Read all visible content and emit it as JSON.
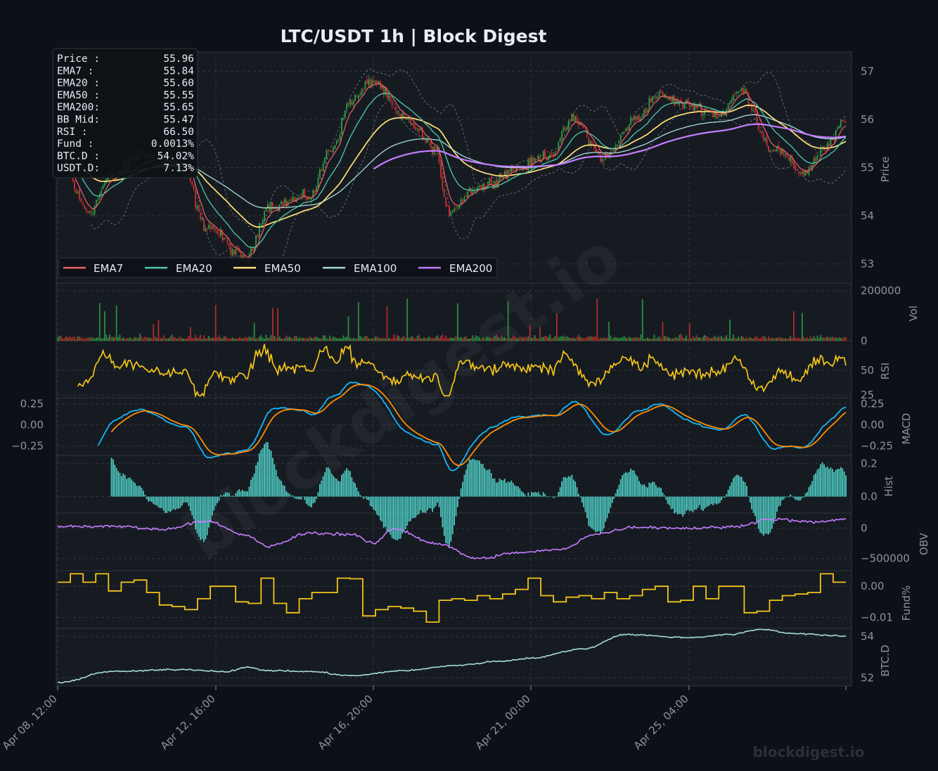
{
  "title": "LTC/USDT  1h  |  Block Digest",
  "watermark": "blockdigest.io",
  "footer_brand": "blockdigest.io",
  "colors": {
    "background": "#0d1117",
    "panel": "#161b22",
    "grid": "#30363d",
    "text": "#8b949e",
    "ema7": "#f0606a",
    "ema20": "#4ec9b0",
    "ema50": "#ffe27a",
    "ema100": "#a8dcd9",
    "ema200": "#c77dff",
    "bull": "#2ea043",
    "bear": "#c9302c",
    "rsi": "#f5c518",
    "macd": "#17b6f5",
    "signal": "#ff8c00",
    "hist": "#4ec9c0",
    "obv": "#c77dff",
    "fund": "#f5c518",
    "btcd": "#a8dcd9"
  },
  "info_box": [
    {
      "label": "Price :",
      "value": "55.96"
    },
    {
      "label": "EMA7  :",
      "value": "55.84"
    },
    {
      "label": "EMA20 :",
      "value": "55.60"
    },
    {
      "label": "EMA50 :",
      "value": "55.55"
    },
    {
      "label": "EMA200:",
      "value": "55.65"
    },
    {
      "label": "BB Mid:",
      "value": "55.47"
    },
    {
      "label": "RSI   :",
      "value": "66.50"
    },
    {
      "label": "Fund  :",
      "value": "0.0013%"
    },
    {
      "label": "BTC.D :",
      "value": "54.02%"
    },
    {
      "label": "USDT.D:",
      "value": "7.13%"
    }
  ],
  "legend": [
    "EMA7",
    "EMA20",
    "EMA50",
    "EMA100",
    "EMA200"
  ],
  "x_ticks": [
    "Apr 08, 12:00",
    "Apr 12, 16:00",
    "Apr 16, 20:00",
    "Apr 21, 00:00",
    "Apr 25, 04:00"
  ],
  "panels": {
    "price": {
      "ylabel": "Price",
      "ticks": [
        "57",
        "56",
        "55",
        "54",
        "53"
      ]
    },
    "vol": {
      "ylabel": "Vol",
      "ticks": [
        "200000",
        "0"
      ]
    },
    "rsi": {
      "ylabel": "RSI",
      "ticks": [
        "50",
        "25"
      ]
    },
    "macd": {
      "ylabel": "MACD",
      "ticks_left": [
        "0.25",
        "0.00",
        "−0.25"
      ],
      "ticks_right": [
        "0.25",
        "0.00",
        "−0.25"
      ]
    },
    "hist": {
      "ylabel": "Hist",
      "ticks": [
        "0.2",
        "0.0"
      ]
    },
    "obv": {
      "ylabel": "OBV",
      "ticks": [
        "0",
        "−500000"
      ]
    },
    "fund": {
      "ylabel": "Fund%",
      "ticks": [
        "0.00",
        "−0.01"
      ]
    },
    "btcd": {
      "ylabel": "BTC.D",
      "ticks": [
        "54",
        "52"
      ]
    }
  },
  "chart_data": {
    "type": "line",
    "title": "LTC/USDT  1h  |  Block Digest",
    "x_range": [
      "Apr 08, 12:00",
      "Apr 28, 08:00"
    ],
    "x_ticks": [
      "Apr 08, 12:00",
      "Apr 12, 16:00",
      "Apr 16, 20:00",
      "Apr 21, 00:00",
      "Apr 25, 04:00"
    ],
    "ylim_price": [
      52.6,
      57.4
    ],
    "price_anchors": [
      [
        0,
        55.2
      ],
      [
        3,
        54.1
      ],
      [
        5,
        54.8
      ],
      [
        8,
        55.3
      ],
      [
        12,
        55.0
      ],
      [
        14,
        53.8
      ],
      [
        18,
        53.1
      ],
      [
        20,
        54.2
      ],
      [
        24,
        54.4
      ],
      [
        26,
        55.4
      ],
      [
        28,
        56.4
      ],
      [
        30,
        56.8
      ],
      [
        33,
        56.0
      ],
      [
        36,
        55.4
      ],
      [
        37,
        54.1
      ],
      [
        40,
        54.6
      ],
      [
        44,
        55.0
      ],
      [
        47,
        55.3
      ],
      [
        49,
        56.0
      ],
      [
        52,
        55.2
      ],
      [
        55,
        56.0
      ],
      [
        57,
        56.5
      ],
      [
        60,
        56.3
      ],
      [
        63,
        56.1
      ],
      [
        65,
        56.6
      ],
      [
        68,
        55.4
      ],
      [
        71,
        54.9
      ],
      [
        73,
        55.4
      ],
      [
        75,
        55.96
      ]
    ],
    "ema200_range": [
      "Apr 16, 20:00",
      "Apr 28, 08:00"
    ],
    "volume_ylim": [
      0,
      230000
    ],
    "rsi_ylim": [
      22,
      80
    ],
    "macd_ylim": [
      -0.36,
      0.32
    ],
    "hist_ylim": [
      -0.1,
      0.25
    ],
    "obv_ylim": [
      -700000,
      250000
    ],
    "fund_ylim": [
      -0.0135,
      0.005
    ],
    "fund_steps": [
      0.0013,
      0.004,
      0.0013,
      0.004,
      -0.0015,
      0.0013,
      0.002,
      -0.002,
      -0.006,
      -0.0065,
      -0.0075,
      -0.004,
      0.0,
      0.0,
      -0.005,
      -0.0055,
      0.0026,
      -0.0055,
      -0.0085,
      -0.004,
      -0.002,
      -0.002,
      0.0026,
      0.0024,
      -0.0095,
      -0.0075,
      -0.0065,
      -0.007,
      -0.008,
      -0.0115,
      -0.0045,
      -0.004,
      -0.0045,
      -0.003,
      -0.004,
      -0.0025,
      -0.001,
      0.0026,
      -0.003,
      -0.005,
      -0.0035,
      -0.003,
      -0.004,
      -0.002,
      -0.004,
      -0.003,
      -0.001,
      0.0,
      -0.005,
      -0.0045,
      0.0,
      -0.004,
      0.0,
      0.0,
      -0.0085,
      -0.008,
      -0.0045,
      -0.003,
      -0.0025,
      -0.002,
      0.004,
      0.0013
    ],
    "btcd_ylim": [
      51.6,
      54.4
    ],
    "btcd_anchors": [
      [
        0,
        51.75
      ],
      [
        5,
        52.3
      ],
      [
        12,
        52.4
      ],
      [
        16,
        52.3
      ],
      [
        18,
        52.5
      ],
      [
        20,
        52.35
      ],
      [
        24,
        52.3
      ],
      [
        28,
        52.1
      ],
      [
        33,
        52.35
      ],
      [
        38,
        52.6
      ],
      [
        42,
        52.8
      ],
      [
        45,
        52.95
      ],
      [
        50,
        53.4
      ],
      [
        54,
        54.1
      ],
      [
        60,
        53.95
      ],
      [
        64,
        54.1
      ],
      [
        67,
        54.35
      ],
      [
        70,
        54.15
      ],
      [
        75,
        54.02
      ]
    ]
  }
}
